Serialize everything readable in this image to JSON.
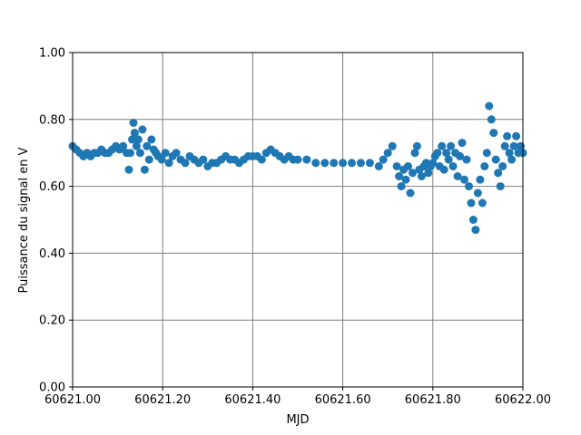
{
  "chart_data": {
    "type": "scatter",
    "title": "",
    "xlabel": "MJD",
    "ylabel": "Puissance du signal en V",
    "xlim": [
      60621.0,
      60622.0
    ],
    "ylim": [
      0.0,
      1.0
    ],
    "x_ticks": [
      60621.0,
      60621.2,
      60621.4,
      60621.6,
      60621.8,
      60622.0
    ],
    "x_tick_labels": [
      "60621.00",
      "60621.20",
      "60621.40",
      "60621.60",
      "60621.80",
      "60622.00"
    ],
    "y_ticks": [
      0.0,
      0.2,
      0.4,
      0.6,
      0.8,
      1.0
    ],
    "y_tick_labels": [
      "0.00",
      "0.20",
      "0.40",
      "0.60",
      "0.80",
      "1.00"
    ],
    "grid": true,
    "grid_color": "#808080",
    "marker_color": "#1f77b4",
    "series": [
      {
        "x": [
          60621.0,
          60621.008,
          60621.016,
          60621.024,
          60621.032,
          60621.04,
          60621.048,
          60621.056,
          60621.064,
          60621.072,
          60621.08,
          60621.088,
          60621.096,
          60621.104,
          60621.112,
          60621.12,
          60621.125,
          60621.128,
          60621.132,
          60621.135,
          60621.138,
          60621.142,
          60621.146,
          60621.15,
          60621.155,
          60621.16,
          60621.165,
          60621.17,
          60621.175,
          60621.18,
          60621.185,
          60621.19,
          60621.198,
          60621.206,
          60621.214,
          60621.222,
          60621.23,
          60621.24,
          60621.25,
          60621.26,
          60621.27,
          60621.28,
          60621.29,
          60621.3,
          60621.31,
          60621.32,
          60621.33,
          60621.34,
          60621.35,
          60621.36,
          60621.37,
          60621.38,
          60621.39,
          60621.4,
          60621.41,
          60621.42,
          60621.43,
          60621.44,
          60621.45,
          60621.46,
          60621.47,
          60621.48,
          60621.49,
          60621.5,
          60621.52,
          60621.54,
          60621.56,
          60621.58,
          60621.6,
          60621.62,
          60621.64,
          60621.66,
          60621.68,
          60621.69,
          60621.7,
          60621.71,
          60621.72,
          60621.725,
          60621.73,
          60621.735,
          60621.74,
          60621.745,
          60621.75,
          60621.755,
          60621.76,
          60621.765,
          60621.77,
          60621.775,
          60621.78,
          60621.785,
          60621.79,
          60621.795,
          60621.8,
          60621.805,
          60621.81,
          60621.815,
          60621.82,
          60621.825,
          60621.83,
          60621.835,
          60621.84,
          60621.845,
          60621.85,
          60621.855,
          60621.86,
          60621.865,
          60621.87,
          60621.875,
          60621.88,
          60621.885,
          60621.89,
          60621.895,
          60621.9,
          60621.905,
          60621.91,
          60621.915,
          60621.92,
          60621.925,
          60621.93,
          60621.935,
          60621.94,
          60621.945,
          60621.95,
          60621.955,
          60621.96,
          60621.965,
          60621.97,
          60621.975,
          60621.98,
          60621.985,
          60621.99,
          60621.995,
          60622.0
        ],
        "y": [
          0.72,
          0.71,
          0.7,
          0.69,
          0.7,
          0.69,
          0.7,
          0.7,
          0.71,
          0.7,
          0.7,
          0.71,
          0.72,
          0.71,
          0.72,
          0.7,
          0.65,
          0.7,
          0.74,
          0.79,
          0.76,
          0.72,
          0.74,
          0.7,
          0.77,
          0.65,
          0.72,
          0.68,
          0.74,
          0.71,
          0.7,
          0.69,
          0.68,
          0.7,
          0.67,
          0.69,
          0.7,
          0.68,
          0.67,
          0.69,
          0.68,
          0.67,
          0.68,
          0.66,
          0.67,
          0.67,
          0.68,
          0.69,
          0.68,
          0.68,
          0.67,
          0.68,
          0.69,
          0.69,
          0.69,
          0.68,
          0.7,
          0.71,
          0.7,
          0.69,
          0.68,
          0.69,
          0.68,
          0.68,
          0.68,
          0.67,
          0.67,
          0.67,
          0.67,
          0.67,
          0.67,
          0.67,
          0.66,
          0.68,
          0.7,
          0.72,
          0.66,
          0.63,
          0.6,
          0.65,
          0.62,
          0.66,
          0.58,
          0.64,
          0.7,
          0.72,
          0.65,
          0.63,
          0.66,
          0.67,
          0.64,
          0.66,
          0.67,
          0.69,
          0.7,
          0.66,
          0.72,
          0.65,
          0.7,
          0.68,
          0.72,
          0.66,
          0.7,
          0.63,
          0.69,
          0.73,
          0.62,
          0.68,
          0.6,
          0.55,
          0.5,
          0.47,
          0.58,
          0.62,
          0.55,
          0.66,
          0.7,
          0.84,
          0.8,
          0.76,
          0.68,
          0.64,
          0.6,
          0.66,
          0.72,
          0.75,
          0.7,
          0.68,
          0.72,
          0.75,
          0.7,
          0.72,
          0.7
        ]
      }
    ]
  }
}
